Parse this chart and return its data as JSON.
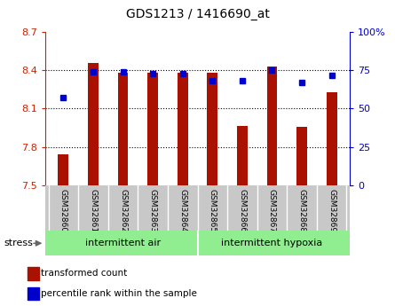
{
  "title": "GDS1213 / 1416690_at",
  "categories": [
    "GSM32860",
    "GSM32861",
    "GSM32862",
    "GSM32863",
    "GSM32864",
    "GSM32865",
    "GSM32866",
    "GSM32867",
    "GSM32868",
    "GSM32869"
  ],
  "transformed_count": [
    7.74,
    8.46,
    8.385,
    8.382,
    8.381,
    8.384,
    7.963,
    8.432,
    7.96,
    8.228
  ],
  "percentile_rank": [
    57,
    74,
    74,
    73,
    73,
    68,
    68,
    75,
    67,
    72
  ],
  "ylim_left": [
    7.5,
    8.7
  ],
  "ylim_right": [
    0,
    100
  ],
  "yticks_left": [
    7.5,
    7.8,
    8.1,
    8.4,
    8.7
  ],
  "yticks_right": [
    0,
    25,
    50,
    75,
    100
  ],
  "bar_color": "#AA1100",
  "dot_color": "#0000CC",
  "bar_bottom": 7.5,
  "group1_label": "intermittent air",
  "group2_label": "intermittent hypoxia",
  "group1_indices": [
    0,
    1,
    2,
    3,
    4
  ],
  "group2_indices": [
    5,
    6,
    7,
    8,
    9
  ],
  "stress_label": "stress",
  "legend1": "transformed count",
  "legend2": "percentile rank within the sample",
  "group_bg_color": "#90EE90",
  "tick_bg_color": "#C8C8C8",
  "ytick_left_color": "#CC2200",
  "ytick_right_color": "#0000CC",
  "right_ytick_labels": [
    "0",
    "25",
    "50",
    "75",
    "100%"
  ],
  "bar_width": 0.35
}
